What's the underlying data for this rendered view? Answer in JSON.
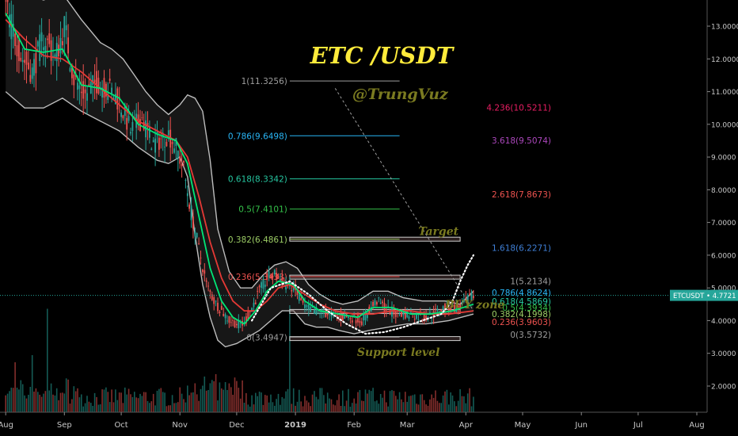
{
  "chart_data": {
    "type": "candlestick",
    "title": "ETC /USDT",
    "author": "@TrungVuz",
    "symbol": "ETCUSDT",
    "last_price": "4.7721",
    "ylim": [
      1.2,
      13.8
    ],
    "yticks": [
      "2.0000",
      "3.0000",
      "4.0000",
      "5.0000",
      "6.0000",
      "7.0000",
      "8.0000",
      "9.0000",
      "10.0000",
      "11.0000",
      "12.0000",
      "13.0000"
    ],
    "ytick_values": [
      2,
      3,
      4,
      5,
      6,
      7,
      8,
      9,
      10,
      11,
      12,
      13
    ],
    "xticks": [
      "Aug",
      "Sep",
      "Oct",
      "Nov",
      "Dec",
      "2019",
      "Feb",
      "Mar",
      "Apr",
      "May",
      "Jun",
      "Jul",
      "Aug"
    ],
    "xtick_days": [
      0,
      31,
      61,
      92,
      122,
      153,
      184,
      212,
      243,
      273,
      304,
      334,
      365
    ],
    "x_range_days": [
      -3,
      370
    ],
    "last_day": 247,
    "price_path": [
      [
        0,
        13.6
      ],
      [
        8,
        12.1
      ],
      [
        14,
        11.6
      ],
      [
        20,
        12.7
      ],
      [
        26,
        12.0
      ],
      [
        31,
        13.0
      ],
      [
        36,
        11.4
      ],
      [
        42,
        10.9
      ],
      [
        48,
        11.3
      ],
      [
        54,
        11.1
      ],
      [
        60,
        10.7
      ],
      [
        66,
        9.8
      ],
      [
        72,
        10.2
      ],
      [
        78,
        9.4
      ],
      [
        86,
        9.7
      ],
      [
        90,
        9.3
      ],
      [
        94,
        8.6
      ],
      [
        98,
        7.3
      ],
      [
        102,
        6.2
      ],
      [
        106,
        5.1
      ],
      [
        110,
        4.6
      ],
      [
        114,
        4.3
      ],
      [
        118,
        4.0
      ],
      [
        122,
        3.9
      ],
      [
        126,
        3.9
      ],
      [
        130,
        4.4
      ],
      [
        134,
        4.9
      ],
      [
        138,
        5.3
      ],
      [
        142,
        5.4
      ],
      [
        146,
        5.2
      ],
      [
        152,
        5.0
      ],
      [
        158,
        4.4
      ],
      [
        164,
        4.3
      ],
      [
        170,
        4.2
      ],
      [
        176,
        4.1
      ],
      [
        182,
        4.1
      ],
      [
        188,
        4.0
      ],
      [
        192,
        4.3
      ],
      [
        196,
        4.6
      ],
      [
        200,
        4.4
      ],
      [
        206,
        4.2
      ],
      [
        214,
        4.2
      ],
      [
        220,
        4.1
      ],
      [
        226,
        4.2
      ],
      [
        232,
        4.4
      ],
      [
        240,
        4.4
      ],
      [
        247,
        4.77
      ]
    ],
    "red_ma_path": [
      [
        0,
        13.2
      ],
      [
        10,
        12.6
      ],
      [
        20,
        12.1
      ],
      [
        30,
        12.0
      ],
      [
        40,
        11.6
      ],
      [
        50,
        11.1
      ],
      [
        60,
        10.6
      ],
      [
        70,
        10.1
      ],
      [
        80,
        9.8
      ],
      [
        90,
        9.5
      ],
      [
        96,
        9.0
      ],
      [
        102,
        7.8
      ],
      [
        108,
        6.4
      ],
      [
        114,
        5.3
      ],
      [
        120,
        4.6
      ],
      [
        126,
        4.3
      ],
      [
        132,
        4.3
      ],
      [
        138,
        4.6
      ],
      [
        144,
        5.0
      ],
      [
        150,
        5.1
      ],
      [
        158,
        4.8
      ],
      [
        166,
        4.5
      ],
      [
        174,
        4.3
      ],
      [
        184,
        4.2
      ],
      [
        194,
        4.2
      ],
      [
        204,
        4.3
      ],
      [
        214,
        4.3
      ],
      [
        224,
        4.2
      ],
      [
        234,
        4.2
      ],
      [
        247,
        4.3
      ]
    ],
    "green_ma_path": [
      [
        0,
        13.4
      ],
      [
        10,
        12.3
      ],
      [
        20,
        12.2
      ],
      [
        30,
        12.3
      ],
      [
        40,
        11.2
      ],
      [
        50,
        11.1
      ],
      [
        60,
        10.8
      ],
      [
        70,
        10.0
      ],
      [
        80,
        9.7
      ],
      [
        90,
        9.5
      ],
      [
        96,
        8.8
      ],
      [
        102,
        7.2
      ],
      [
        108,
        5.6
      ],
      [
        114,
        4.6
      ],
      [
        120,
        4.1
      ],
      [
        126,
        3.9
      ],
      [
        132,
        4.3
      ],
      [
        138,
        4.9
      ],
      [
        144,
        5.2
      ],
      [
        152,
        5.1
      ],
      [
        158,
        4.6
      ],
      [
        166,
        4.3
      ],
      [
        176,
        4.2
      ],
      [
        186,
        4.1
      ],
      [
        194,
        4.4
      ],
      [
        204,
        4.4
      ],
      [
        214,
        4.2
      ],
      [
        224,
        4.2
      ],
      [
        236,
        4.3
      ],
      [
        247,
        4.5
      ]
    ],
    "bb_upper_path": [
      [
        0,
        14.0
      ],
      [
        10,
        14.0
      ],
      [
        20,
        13.8
      ],
      [
        30,
        14.0
      ],
      [
        40,
        13.2
      ],
      [
        50,
        12.5
      ],
      [
        56,
        12.3
      ],
      [
        62,
        12.0
      ],
      [
        68,
        11.5
      ],
      [
        74,
        11.0
      ],
      [
        80,
        10.6
      ],
      [
        86,
        10.3
      ],
      [
        92,
        10.6
      ],
      [
        96,
        10.9
      ],
      [
        100,
        10.8
      ],
      [
        104,
        10.4
      ],
      [
        108,
        8.9
      ],
      [
        112,
        6.8
      ],
      [
        118,
        5.5
      ],
      [
        124,
        5.0
      ],
      [
        130,
        5.0
      ],
      [
        136,
        5.4
      ],
      [
        142,
        5.7
      ],
      [
        148,
        5.8
      ],
      [
        154,
        5.6
      ],
      [
        160,
        5.1
      ],
      [
        166,
        4.8
      ],
      [
        172,
        4.6
      ],
      [
        178,
        4.5
      ],
      [
        186,
        4.6
      ],
      [
        194,
        4.9
      ],
      [
        202,
        4.9
      ],
      [
        210,
        4.7
      ],
      [
        220,
        4.6
      ],
      [
        232,
        4.6
      ],
      [
        240,
        4.5
      ],
      [
        247,
        4.9
      ]
    ],
    "bb_lower_path": [
      [
        0,
        11.0
      ],
      [
        10,
        10.5
      ],
      [
        20,
        10.5
      ],
      [
        30,
        10.8
      ],
      [
        40,
        10.4
      ],
      [
        50,
        10.1
      ],
      [
        60,
        9.8
      ],
      [
        70,
        9.3
      ],
      [
        80,
        8.9
      ],
      [
        86,
        8.8
      ],
      [
        92,
        9.0
      ],
      [
        96,
        8.4
      ],
      [
        100,
        6.6
      ],
      [
        104,
        5.1
      ],
      [
        108,
        4.1
      ],
      [
        112,
        3.4
      ],
      [
        116,
        3.2
      ],
      [
        122,
        3.3
      ],
      [
        128,
        3.5
      ],
      [
        134,
        3.7
      ],
      [
        140,
        4.0
      ],
      [
        146,
        4.3
      ],
      [
        152,
        4.3
      ],
      [
        158,
        3.9
      ],
      [
        164,
        3.8
      ],
      [
        170,
        3.8
      ],
      [
        176,
        3.7
      ],
      [
        184,
        3.6
      ],
      [
        192,
        3.7
      ],
      [
        202,
        3.8
      ],
      [
        212,
        3.9
      ],
      [
        222,
        3.9
      ],
      [
        234,
        4.0
      ],
      [
        247,
        4.2
      ]
    ],
    "fib_retracement": {
      "from_day": 150,
      "to_day": 208,
      "levels": [
        {
          "label": "1(11.3256)",
          "value": 11.3256,
          "color": "#9e9e9e"
        },
        {
          "label": "0.786(9.6498)",
          "value": 9.6498,
          "color": "#29b6f6"
        },
        {
          "label": "0.618(8.3342)",
          "value": 8.3342,
          "color": "#26c6a0"
        },
        {
          "label": "0.5(7.4101)",
          "value": 7.4101,
          "color": "#35c24a"
        },
        {
          "label": "0.382(6.4861)",
          "value": 6.4861,
          "color": "#9ccc65"
        },
        {
          "label": "0.236(5.3433)",
          "value": 5.3433,
          "color": "#ef5350"
        },
        {
          "label": "0(3.4947)",
          "value": 3.4947,
          "color": "#9e9e9e"
        }
      ]
    },
    "fib_extension": [
      {
        "label": "4.236(10.5211)",
        "value": 10.5211,
        "color": "#e91e63"
      },
      {
        "label": "3.618(9.5074)",
        "value": 9.5074,
        "color": "#ab47bc"
      },
      {
        "label": "2.618(7.8673)",
        "value": 7.8673,
        "color": "#ef5350"
      },
      {
        "label": "1.618(6.2271)",
        "value": 6.2271,
        "color": "#3f7fd6"
      },
      {
        "label": "1(5.2134)",
        "value": 5.2134,
        "color": "#9e9e9e"
      },
      {
        "label": "0.786(4.8624)",
        "value": 4.8624,
        "color": "#29b6f6"
      },
      {
        "label": "0.618(4.5869)",
        "value": 4.5869,
        "color": "#26c6a0"
      },
      {
        "label": "0.5(4.3934)",
        "value": 4.3934,
        "color": "#35c24a"
      },
      {
        "label": "0.382(4.1998)",
        "value": 4.1998,
        "color": "#9ccc65"
      },
      {
        "label": "0.236(3.9603)",
        "value": 3.9603,
        "color": "#ef5350"
      },
      {
        "label": "0(3.5732)",
        "value": 3.5732,
        "color": "#9e9e9e"
      }
    ],
    "zones": [
      {
        "label": "Target",
        "value": 6.49,
        "from_day": 150,
        "to_day": 240
      },
      {
        "label": "",
        "value": 5.33,
        "from_day": 150,
        "to_day": 240
      },
      {
        "label": "BUY zone",
        "value": 4.28,
        "from_day": 150,
        "to_day": 240
      },
      {
        "label": "Support level",
        "value": 3.45,
        "from_day": 150,
        "to_day": 240
      }
    ],
    "projection_path": [
      [
        130,
        4.0
      ],
      [
        140,
        5.0
      ],
      [
        150,
        5.2
      ],
      [
        160,
        4.8
      ],
      [
        170,
        4.3
      ],
      [
        180,
        3.9
      ],
      [
        190,
        3.6
      ],
      [
        200,
        3.65
      ],
      [
        210,
        3.8
      ],
      [
        220,
        4.0
      ],
      [
        230,
        4.2
      ],
      [
        236,
        4.6
      ],
      [
        240,
        5.2
      ],
      [
        244,
        5.7
      ],
      [
        247,
        6.0
      ]
    ],
    "trend_line": [
      [
        174,
        11.1
      ],
      [
        247,
        4.3
      ]
    ],
    "volume_max": 3.0,
    "volume_scale_values": [
      0.2,
      0.4,
      0.6,
      0.8,
      1.0,
      1.4,
      2.0,
      2.9
    ]
  },
  "colors": {
    "bg": "#000000",
    "up": "#26a69a",
    "down": "#ef5350",
    "red_ma": "#e53935",
    "green_ma": "#00e676",
    "band": "#bdbdbd",
    "axis_text": "#c8c8c8",
    "title": "#ffeb3b",
    "author": "#7a7a20",
    "zone_text": "#7a7a20",
    "price_tag": "#26a69a"
  }
}
